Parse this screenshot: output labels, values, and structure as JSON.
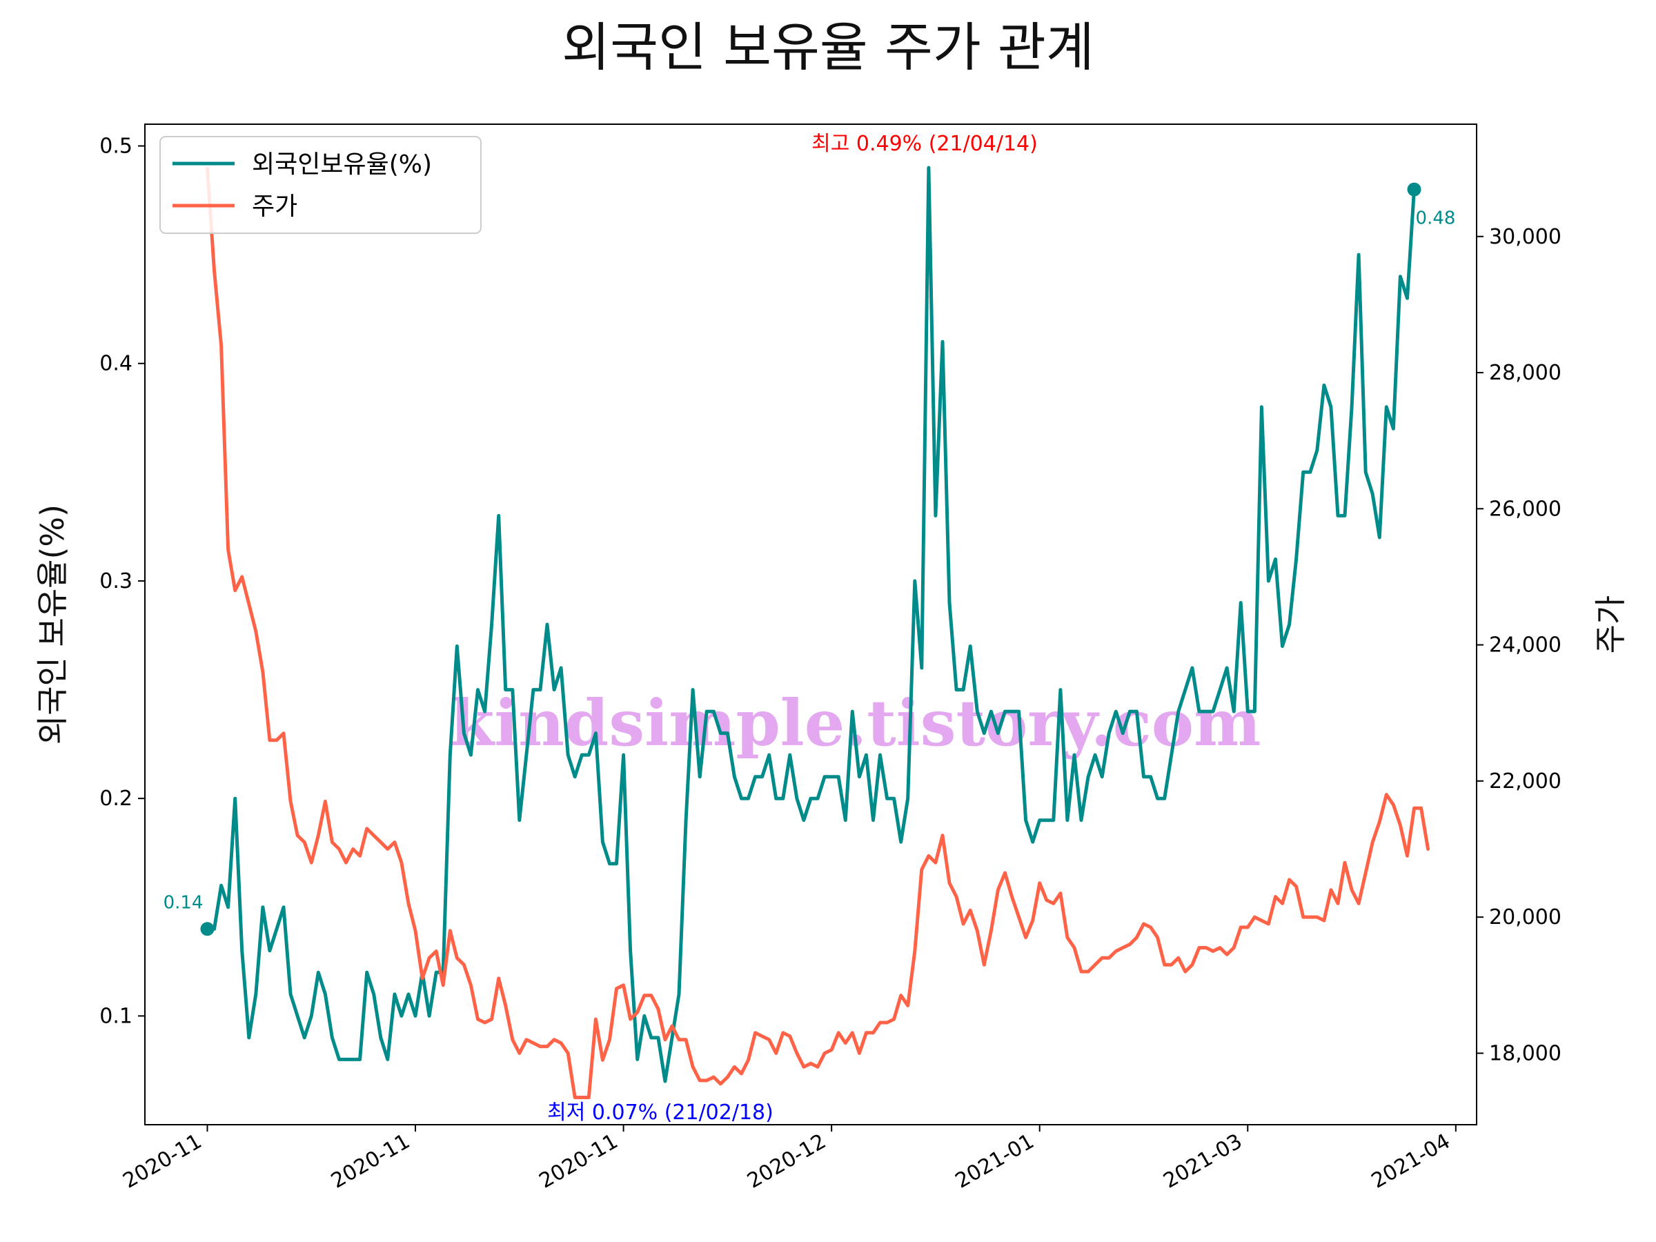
{
  "chart_data": {
    "type": "line",
    "title": "외국인 보유율 주가 관계",
    "x_tick_labels": [
      "2020-11",
      "2020-11",
      "2020-11",
      "2020-12",
      "2021-01",
      "2021-03",
      "2021-04"
    ],
    "left_axis": {
      "label": "외국인 보유율(%)",
      "ylim": [
        0.05,
        0.51
      ],
      "ticks": [
        0.1,
        0.2,
        0.3,
        0.4,
        0.5
      ],
      "tick_labels": [
        "0.1",
        "0.2",
        "0.3",
        "0.4",
        "0.5"
      ]
    },
    "right_axis": {
      "label": "주가",
      "ylim": [
        16950,
        31650
      ],
      "ticks": [
        18000,
        20000,
        22000,
        24000,
        26000,
        28000,
        30000
      ],
      "tick_labels": [
        "18,000",
        "20,000",
        "22,000",
        "24,000",
        "26,000",
        "28,000",
        "30,000"
      ]
    },
    "x_range": [
      -9,
      183
    ],
    "tick_positions": [
      0,
      30,
      60,
      90,
      120,
      150,
      180
    ],
    "series": [
      {
        "name": "외국인보유율(%)",
        "axis": "left",
        "color": "#008b8b",
        "values": [
          0.14,
          0.14,
          0.16,
          0.15,
          0.2,
          0.13,
          0.09,
          0.11,
          0.15,
          0.13,
          0.14,
          0.15,
          0.11,
          0.1,
          0.09,
          0.1,
          0.12,
          0.11,
          0.09,
          0.08,
          0.08,
          0.08,
          0.08,
          0.12,
          0.11,
          0.09,
          0.08,
          0.11,
          0.1,
          0.11,
          0.1,
          0.12,
          0.1,
          0.12,
          0.12,
          0.22,
          0.27,
          0.23,
          0.22,
          0.25,
          0.24,
          0.28,
          0.33,
          0.25,
          0.25,
          0.19,
          0.22,
          0.25,
          0.25,
          0.28,
          0.25,
          0.26,
          0.22,
          0.21,
          0.22,
          0.22,
          0.23,
          0.18,
          0.17,
          0.17,
          0.22,
          0.13,
          0.08,
          0.1,
          0.09,
          0.09,
          0.07,
          0.09,
          0.11,
          0.19,
          0.25,
          0.21,
          0.24,
          0.24,
          0.23,
          0.23,
          0.21,
          0.2,
          0.2,
          0.21,
          0.21,
          0.22,
          0.2,
          0.2,
          0.22,
          0.2,
          0.19,
          0.2,
          0.2,
          0.21,
          0.21,
          0.21,
          0.19,
          0.24,
          0.21,
          0.22,
          0.19,
          0.22,
          0.2,
          0.2,
          0.18,
          0.2,
          0.3,
          0.26,
          0.49,
          0.33,
          0.41,
          0.29,
          0.25,
          0.25,
          0.27,
          0.24,
          0.23,
          0.24,
          0.23,
          0.24,
          0.24,
          0.24,
          0.19,
          0.18,
          0.19,
          0.19,
          0.19,
          0.25,
          0.19,
          0.22,
          0.19,
          0.21,
          0.22,
          0.21,
          0.23,
          0.24,
          0.23,
          0.24,
          0.24,
          0.21,
          0.21,
          0.2,
          0.2,
          0.22,
          0.24,
          0.25,
          0.26,
          0.24,
          0.24,
          0.24,
          0.25,
          0.26,
          0.24,
          0.29,
          0.24,
          0.24,
          0.38,
          0.3,
          0.31,
          0.27,
          0.28,
          0.31,
          0.35,
          0.35,
          0.36,
          0.39,
          0.38,
          0.33,
          0.33,
          0.38,
          0.45,
          0.35,
          0.34,
          0.32,
          0.38,
          0.37,
          0.44,
          0.43,
          0.48
        ],
        "start_label": "0.14",
        "end_label": "0.48"
      },
      {
        "name": "주가",
        "axis": "right",
        "color": "#ff6347",
        "values": [
          31000,
          29500,
          28400,
          25400,
          24800,
          25000,
          24600,
          24200,
          23600,
          22600,
          22600,
          22700,
          21700,
          21200,
          21100,
          20800,
          21200,
          21700,
          21100,
          21000,
          20800,
          21000,
          20900,
          21300,
          21200,
          21100,
          21000,
          21100,
          20800,
          20200,
          19800,
          19100,
          19400,
          19500,
          19000,
          19800,
          19400,
          19300,
          19000,
          18500,
          18450,
          18500,
          19100,
          18700,
          18200,
          18000,
          18200,
          18150,
          18100,
          18100,
          18200,
          18150,
          18000,
          17350,
          17350,
          17350,
          18500,
          17900,
          18200,
          18950,
          19000,
          18500,
          18600,
          18850,
          18850,
          18650,
          18200,
          18400,
          18200,
          18200,
          17800,
          17600,
          17600,
          17650,
          17550,
          17650,
          17800,
          17700,
          17900,
          18300,
          18250,
          18200,
          18000,
          18300,
          18250,
          18000,
          17800,
          17850,
          17800,
          18000,
          18050,
          18300,
          18150,
          18300,
          18000,
          18300,
          18300,
          18450,
          18450,
          18500,
          18850,
          18700,
          19500,
          20700,
          20900,
          20800,
          21200,
          20500,
          20300,
          19900,
          20100,
          19800,
          19300,
          19800,
          20400,
          20650,
          20300,
          20000,
          19700,
          19950,
          20500,
          20250,
          20200,
          20350,
          19700,
          19550,
          19200,
          19200,
          19300,
          19400,
          19400,
          19500,
          19550,
          19600,
          19700,
          19900,
          19850,
          19700,
          19300,
          19300,
          19400,
          19200,
          19300,
          19550,
          19550,
          19500,
          19550,
          19450,
          19550,
          19850,
          19850,
          20000,
          19950,
          19900,
          20300,
          20200,
          20550,
          20450,
          20000,
          20000,
          20000,
          19950,
          20400,
          20200,
          20800,
          20400,
          20200,
          20650,
          21100,
          21400,
          21800,
          21650,
          21350,
          20900,
          21600,
          21600,
          21000
        ],
        "start_label": "",
        "end_label": ""
      }
    ],
    "annotations": {
      "max_text": "최고 0.49% (21/04/14)",
      "min_text": "최저 0.07% (21/02/18)",
      "max_color": "#ff0000",
      "min_color": "#0000ff"
    },
    "legend_position": "upper-left",
    "watermark": "kindsimple.tistory.com",
    "watermark_color": "#e3a8ef"
  }
}
